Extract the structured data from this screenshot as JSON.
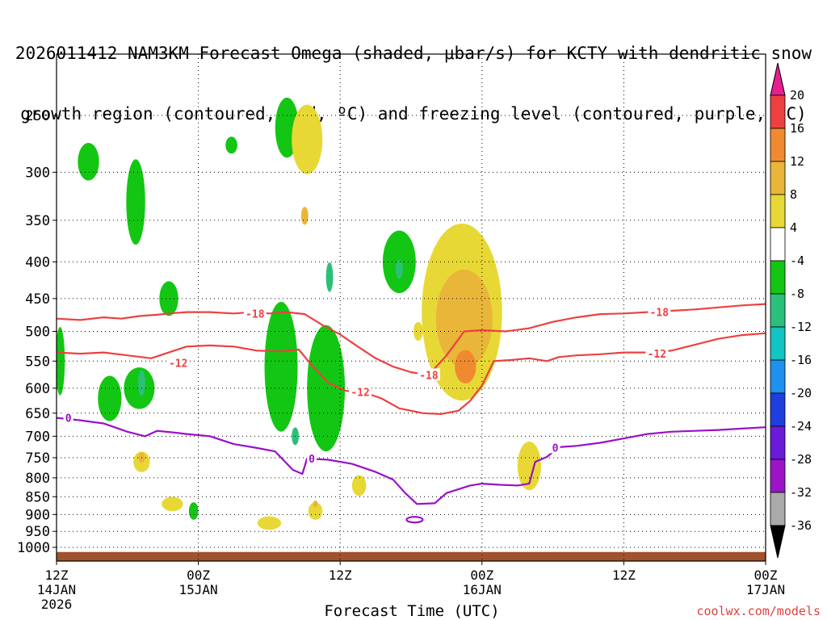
{
  "title": {
    "line1": "2026011412 NAM3KM Forecast Omega (shaded, μbar/s) for KCTY with dendritic snow",
    "line2": "growth region (contoured, red, ºC) and freezing level (contoured, purple, ºC)"
  },
  "credit": "coolwx.com/models",
  "chart_data": {
    "type": "heatmap",
    "xlabel": "Forecast Time (UTC)",
    "ylabel": "",
    "x_ticks": [
      {
        "hours": 0,
        "label": "12Z",
        "label2": "14JAN",
        "label3": "2026"
      },
      {
        "hours": 12,
        "label": "00Z",
        "label2": "15JAN",
        "label3": ""
      },
      {
        "hours": 24,
        "label": "12Z",
        "label2": "",
        "label3": ""
      },
      {
        "hours": 36,
        "label": "00Z",
        "label2": "16JAN",
        "label3": ""
      },
      {
        "hours": 48,
        "label": "12Z",
        "label2": "",
        "label3": ""
      },
      {
        "hours": 60,
        "label": "00Z",
        "label2": "17JAN",
        "label3": ""
      }
    ],
    "xlim_hours": [
      0,
      60
    ],
    "y_ticks_hPa": [
      250,
      300,
      350,
      400,
      450,
      500,
      550,
      600,
      650,
      700,
      750,
      800,
      850,
      900,
      950,
      1000
    ],
    "y_scale": "log-pressure",
    "ylim_hPa": [
      200,
      1030
    ],
    "colorbar": {
      "labels": [
        "20",
        "16",
        "12",
        "8",
        "4",
        "-4",
        "-8",
        "-12",
        "-16",
        "-20",
        "-24",
        "-28",
        "-32",
        "-36"
      ],
      "colors": [
        "#e51f8f",
        "#ee4040",
        "#f08a30",
        "#e9b63a",
        "#e8d835",
        "#ffffff",
        "#13c613",
        "#2bc07a",
        "#14c3c3",
        "#1e90ee",
        "#1e3ee0",
        "#6a1ad8",
        "#9b14c8",
        "#aaaaaa",
        "#000000"
      ]
    },
    "omega_regions": [
      {
        "class": "-8",
        "t": 6.7,
        "p": 330,
        "dt": 0.8,
        "dp": 90
      },
      {
        "class": "-8",
        "t": 2.7,
        "p": 290,
        "dt": 0.9,
        "dp": 35
      },
      {
        "class": "-8",
        "t": 7.0,
        "p": 600,
        "dt": 1.3,
        "dp": 80
      },
      {
        "class": "-12",
        "t": 7.2,
        "p": 590,
        "dt": 0.3,
        "dp": 50
      },
      {
        "class": "-8",
        "t": 4.5,
        "p": 620,
        "dt": 1.0,
        "dp": 90
      },
      {
        "class": "-8",
        "t": 9.5,
        "p": 450,
        "dt": 0.8,
        "dp": 50
      },
      {
        "class": "-8",
        "t": 0.3,
        "p": 550,
        "dt": 0.4,
        "dp": 120
      },
      {
        "class": "-8",
        "t": 11.6,
        "p": 890,
        "dt": 0.4,
        "dp": 50
      },
      {
        "class": "-8",
        "t": 14.8,
        "p": 275,
        "dt": 0.5,
        "dp": 15
      },
      {
        "class": "-8",
        "t": 19.0,
        "p": 560,
        "dt": 1.4,
        "dp": 230
      },
      {
        "class": "-8",
        "t": 19.5,
        "p": 260,
        "dt": 1.0,
        "dp": 50
      },
      {
        "class": "-12",
        "t": 20.2,
        "p": 700,
        "dt": 0.3,
        "dp": 40
      },
      {
        "class": "-8",
        "t": 22.8,
        "p": 600,
        "dt": 1.6,
        "dp": 240
      },
      {
        "class": "-12",
        "t": 23.1,
        "p": 420,
        "dt": 0.3,
        "dp": 40
      },
      {
        "class": "-8",
        "t": 29.0,
        "p": 400,
        "dt": 1.4,
        "dp": 80
      },
      {
        "class": "-12",
        "t": 29.0,
        "p": 410,
        "dt": 0.3,
        "dp": 25
      },
      {
        "class": "4",
        "t": 21.2,
        "p": 270,
        "dt": 1.3,
        "dp": 60
      },
      {
        "class": "8",
        "t": 21.0,
        "p": 345,
        "dt": 0.3,
        "dp": 20
      },
      {
        "class": "4",
        "t": 34.3,
        "p": 470,
        "dt": 3.4,
        "dp": 260
      },
      {
        "class": "8",
        "t": 34.5,
        "p": 480,
        "dt": 2.4,
        "dp": 150
      },
      {
        "class": "12",
        "t": 34.6,
        "p": 560,
        "dt": 0.9,
        "dp": 60
      },
      {
        "class": "4",
        "t": 7.2,
        "p": 760,
        "dt": 0.7,
        "dp": 50
      },
      {
        "class": "8",
        "t": 7.2,
        "p": 750,
        "dt": 0.3,
        "dp": 25
      },
      {
        "class": "4",
        "t": 9.8,
        "p": 870,
        "dt": 0.9,
        "dp": 40
      },
      {
        "class": "4",
        "t": 18.0,
        "p": 925,
        "dt": 1.0,
        "dp": 40
      },
      {
        "class": "4",
        "t": 21.9,
        "p": 890,
        "dt": 0.6,
        "dp": 50
      },
      {
        "class": "8",
        "t": 21.9,
        "p": 870,
        "dt": 0.2,
        "dp": 20
      },
      {
        "class": "4",
        "t": 25.6,
        "p": 820,
        "dt": 0.6,
        "dp": 55
      },
      {
        "class": "4",
        "t": 40.0,
        "p": 770,
        "dt": 1.0,
        "dp": 120
      },
      {
        "class": "4",
        "t": 30.6,
        "p": 500,
        "dt": 0.4,
        "dp": 30
      }
    ],
    "isotherm_neg18": [
      [
        0,
        480
      ],
      [
        2,
        482
      ],
      [
        4,
        478
      ],
      [
        5.5,
        480
      ],
      [
        7,
        476
      ],
      [
        8.5,
        474
      ],
      [
        9.5,
        472
      ],
      [
        11,
        470
      ],
      [
        13,
        470
      ],
      [
        15,
        472
      ],
      [
        16.5,
        470
      ],
      [
        18,
        472
      ],
      [
        19.5,
        470
      ],
      [
        21,
        473
      ],
      [
        22.5,
        490
      ],
      [
        24,
        505
      ],
      [
        25.5,
        525
      ],
      [
        27,
        545
      ],
      [
        28.5,
        560
      ],
      [
        30,
        570
      ],
      [
        31.5,
        575
      ],
      [
        33,
        540
      ],
      [
        34.5,
        500
      ],
      [
        36,
        498
      ],
      [
        38,
        500
      ],
      [
        40,
        495
      ],
      [
        42,
        485
      ],
      [
        44,
        478
      ],
      [
        46,
        473
      ],
      [
        48,
        472
      ],
      [
        50,
        470
      ],
      [
        52,
        468
      ],
      [
        54,
        466
      ],
      [
        56,
        463
      ],
      [
        58,
        460
      ],
      [
        60,
        458
      ]
    ],
    "isotherm_neg12": [
      [
        0,
        535
      ],
      [
        2,
        537
      ],
      [
        4,
        535
      ],
      [
        6,
        540
      ],
      [
        8,
        545
      ],
      [
        9.5,
        535
      ],
      [
        11,
        525
      ],
      [
        13,
        523
      ],
      [
        15,
        525
      ],
      [
        17,
        532
      ],
      [
        19,
        533
      ],
      [
        20.5,
        530
      ],
      [
        21.5,
        555
      ],
      [
        23,
        590
      ],
      [
        24.5,
        605
      ],
      [
        26,
        608
      ],
      [
        27.5,
        620
      ],
      [
        29,
        640
      ],
      [
        31,
        650
      ],
      [
        32.5,
        652
      ],
      [
        34,
        645
      ],
      [
        35,
        625
      ],
      [
        36,
        595
      ],
      [
        37,
        550
      ],
      [
        38.5,
        548
      ],
      [
        40,
        545
      ],
      [
        41.5,
        550
      ],
      [
        42.5,
        543
      ],
      [
        44,
        540
      ],
      [
        46,
        538
      ],
      [
        48,
        535
      ],
      [
        50,
        535
      ],
      [
        52,
        532
      ],
      [
        54,
        522
      ],
      [
        56,
        512
      ],
      [
        58,
        506
      ],
      [
        60,
        503
      ]
    ],
    "freezing_level": [
      [
        0,
        660
      ],
      [
        2,
        665
      ],
      [
        4,
        672
      ],
      [
        6,
        690
      ],
      [
        7.5,
        700
      ],
      [
        8.5,
        688
      ],
      [
        10,
        692
      ],
      [
        11,
        695
      ],
      [
        13,
        700
      ],
      [
        15,
        718
      ],
      [
        17,
        727
      ],
      [
        18.5,
        735
      ],
      [
        20,
        780
      ],
      [
        20.8,
        790
      ],
      [
        21.2,
        752
      ],
      [
        23,
        755
      ],
      [
        25,
        765
      ],
      [
        27,
        785
      ],
      [
        28.5,
        805
      ],
      [
        29.5,
        840
      ],
      [
        30.5,
        870
      ],
      [
        32,
        868
      ],
      [
        33,
        840
      ],
      [
        34,
        830
      ],
      [
        35,
        820
      ],
      [
        36,
        815
      ],
      [
        37.5,
        818
      ],
      [
        39,
        820
      ],
      [
        40,
        815
      ],
      [
        40.5,
        760
      ],
      [
        41.5,
        748
      ],
      [
        42.5,
        725
      ],
      [
        44,
        722
      ],
      [
        46,
        715
      ],
      [
        48,
        705
      ],
      [
        50,
        695
      ],
      [
        52,
        690
      ],
      [
        54,
        688
      ],
      [
        56,
        686
      ],
      [
        58,
        683
      ],
      [
        60,
        680
      ]
    ],
    "freezing_loop": {
      "t": 30.3,
      "p": 915
    },
    "contour_labels": [
      {
        "text": "-18",
        "t": 16.8,
        "p": 472,
        "color": "#ee4040"
      },
      {
        "text": "-12",
        "t": 10.3,
        "p": 553,
        "color": "#ee4040"
      },
      {
        "text": "-12",
        "t": 25.7,
        "p": 607,
        "color": "#ee4040"
      },
      {
        "text": "-18",
        "t": 31.5,
        "p": 575,
        "color": "#ee4040"
      },
      {
        "text": "-18",
        "t": 51.0,
        "p": 470,
        "color": "#ee4040"
      },
      {
        "text": "-12",
        "t": 50.8,
        "p": 537,
        "color": "#ee4040"
      },
      {
        "text": "0",
        "t": 1.0,
        "p": 660,
        "color": "#9a10c8"
      },
      {
        "text": "0",
        "t": 21.6,
        "p": 752,
        "color": "#9a10c8"
      },
      {
        "text": "0",
        "t": 42.2,
        "p": 726,
        "color": "#9a10c8"
      }
    ]
  }
}
